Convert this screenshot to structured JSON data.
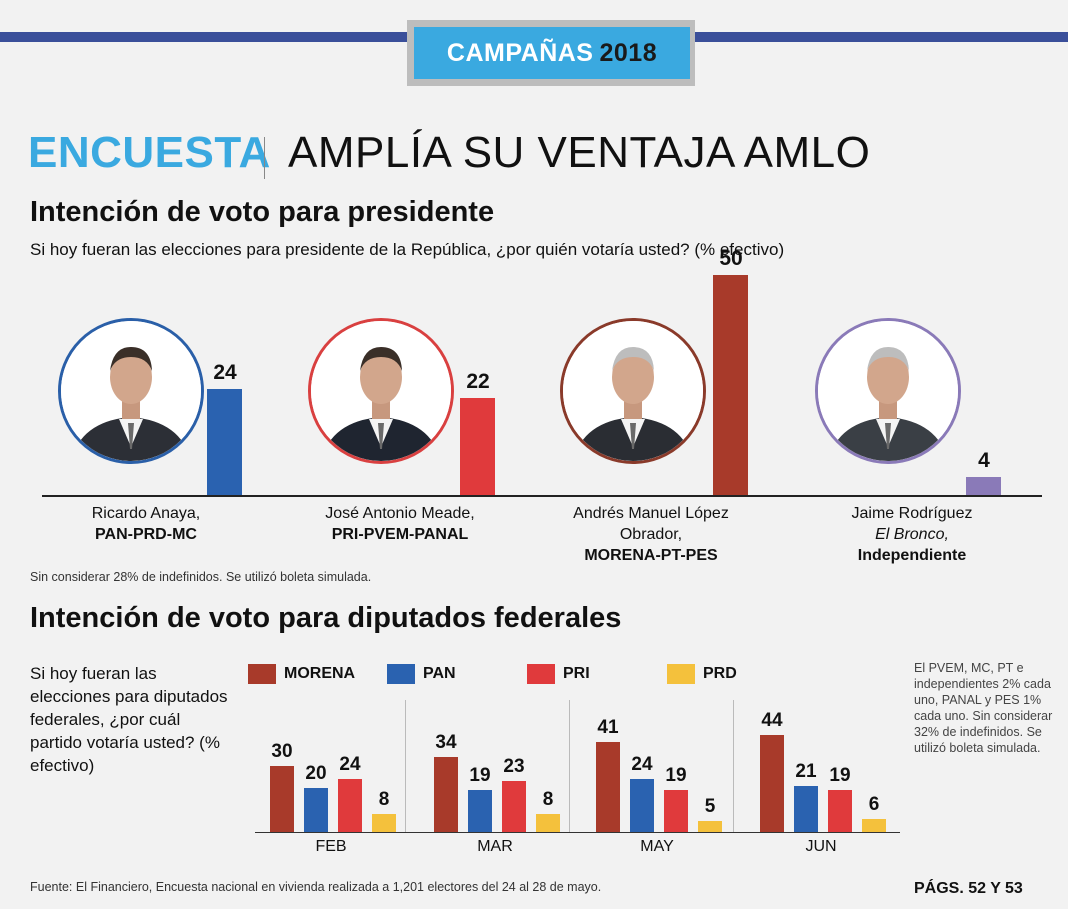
{
  "banner": {
    "label": "CAMPAÑAS",
    "year": "2018"
  },
  "header": {
    "kicker": "ENCUESTA",
    "headline": "AMPLÍA SU VENTAJA AMLO"
  },
  "section1": {
    "title": "Intención de voto para presidente",
    "question": "Si hoy fueran las elecciones para presidente de la República, ¿por quién votaría usted? (% efectivo)",
    "note": "Sin considerar 28% de indefinidos. Se utilizó boleta simulada."
  },
  "section2": {
    "title": "Intención de voto para diputados federales",
    "question": "Si hoy fueran las elecciones para diputados federales, ¿por cuál partido votaría usted? (% efectivo)",
    "note": "El PVEM, MC, PT e independientes 2% cada uno, PANAL y PES 1% cada uno. Sin considerar 32% de indefinidos. Se utilizó boleta simulada."
  },
  "footer": {
    "source": "Fuente: El Financiero, Encuesta nacional en vivienda realizada a 1,201 electores del 24 al 28 de mayo.",
    "pages": "PÁGS. 52 Y 53"
  },
  "chart_data": [
    {
      "type": "bar",
      "title": "Intención de voto para presidente",
      "ylim": [
        0,
        50
      ],
      "grid": false,
      "candidates": [
        {
          "name_lines": [
            "Ricardo Anaya,"
          ],
          "party": "PAN-PRD-MC",
          "value": 24,
          "label": "24",
          "color": "#2a62b0"
        },
        {
          "name_lines": [
            "José Antonio Meade,"
          ],
          "party": "PRI-PVEM-PANAL",
          "value": 22,
          "label": "22",
          "color": "#e03a3c"
        },
        {
          "name_lines": [
            "Andrés Manuel López",
            "Obrador,"
          ],
          "party": "MORENA-PT-PES",
          "value": 50,
          "label": "50",
          "color": "#a83a2a"
        },
        {
          "name_lines": [
            "Jaime Rodríguez",
            "El Bronco,"
          ],
          "party": "Independiente",
          "value": 4,
          "label": "4",
          "color": "#8a7ab8"
        }
      ]
    },
    {
      "type": "bar",
      "title": "Intención de voto para diputados federales",
      "categories": [
        "FEB",
        "MAR",
        "MAY",
        "JUN"
      ],
      "legend_position": "top",
      "grid": false,
      "series": [
        {
          "name": "MORENA",
          "color": "#a83a2a",
          "values": [
            30,
            34,
            41,
            44
          ],
          "labels": [
            "30",
            "34",
            "41",
            "44"
          ]
        },
        {
          "name": "PAN",
          "color": "#2a62b0",
          "values": [
            20,
            19,
            24,
            21
          ],
          "labels": [
            "20",
            "19",
            "24",
            "21"
          ]
        },
        {
          "name": "PRI",
          "color": "#e03a3c",
          "values": [
            24,
            23,
            19,
            19
          ],
          "labels": [
            "24",
            "23",
            "19",
            "19"
          ]
        },
        {
          "name": "PRD",
          "color": "#f4c13c",
          "values": [
            8,
            8,
            5,
            6
          ],
          "labels": [
            "8",
            "8",
            "5",
            "6"
          ]
        }
      ]
    }
  ]
}
